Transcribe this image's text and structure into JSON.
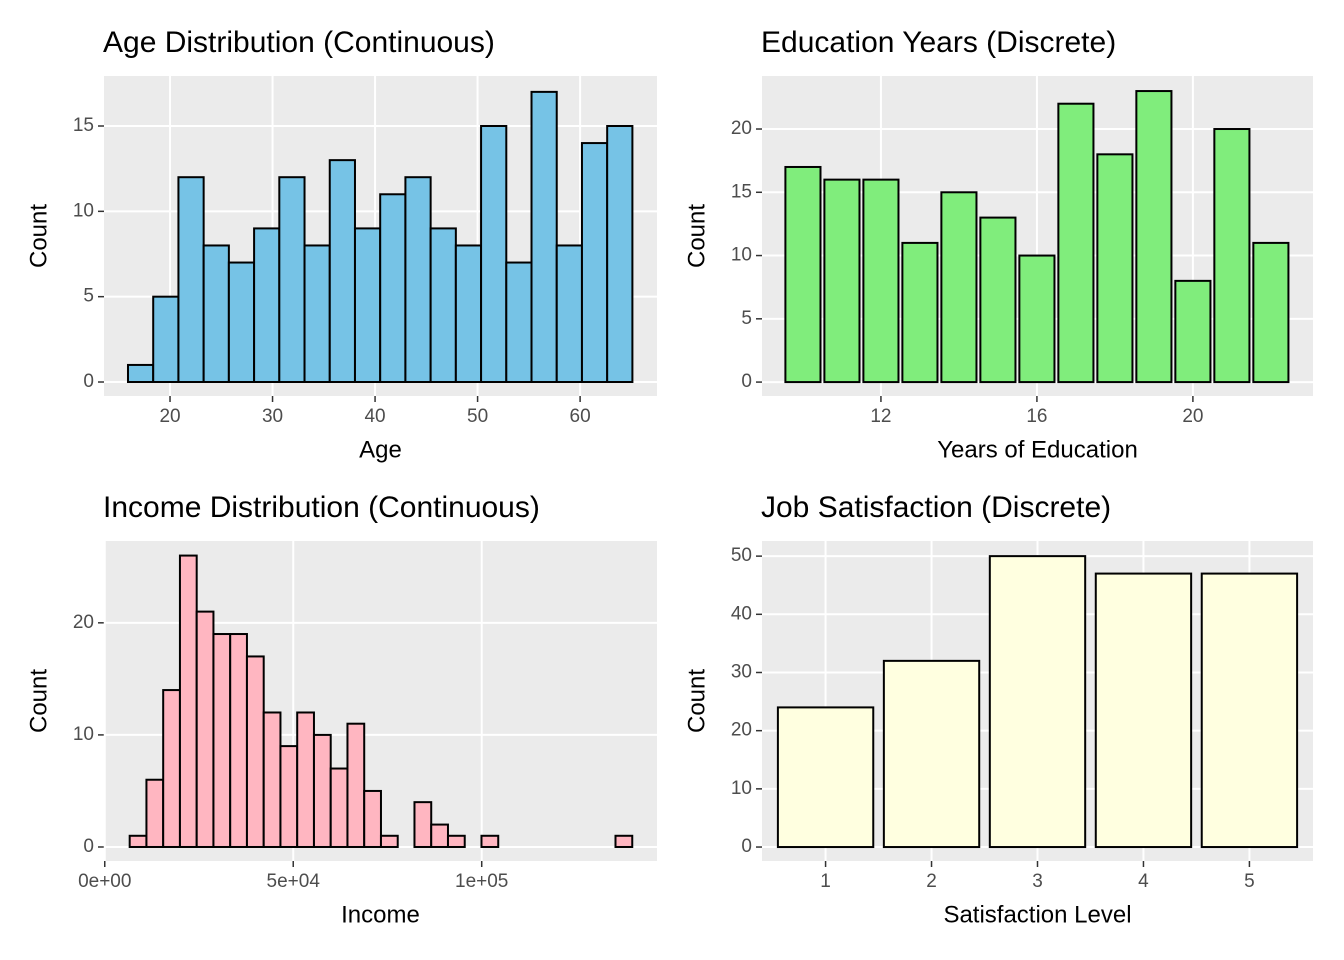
{
  "chart_data": [
    {
      "type": "histogram",
      "title": "Age Distribution (Continuous)",
      "x_label": "Age",
      "y_label": "Count",
      "bins": [
        15.9,
        18.36,
        20.82,
        23.28,
        25.74,
        28.2,
        30.66,
        33.12,
        35.58,
        38.04,
        40.5,
        42.96,
        45.42,
        47.88,
        50.34,
        52.8,
        55.26,
        57.72,
        60.18,
        62.64,
        65.1
      ],
      "counts": [
        1,
        5,
        12,
        8,
        7,
        9,
        12,
        8,
        13,
        9,
        11,
        12,
        9,
        8,
        15,
        7,
        17,
        8,
        14,
        15
      ],
      "color": "#76c3e6",
      "edge_color": "#000000",
      "xlim": [
        13.56,
        67.5
      ],
      "xticks": [
        20,
        30,
        40,
        50,
        60
      ],
      "ylim": [
        -0.82,
        17.93
      ],
      "yticks": [
        0,
        5,
        10,
        15
      ],
      "grid": true
    },
    {
      "type": "bar",
      "title": "Education Years (Discrete)",
      "x_label": "Years of Education",
      "y_label": "Count",
      "x": [
        10,
        11,
        12,
        13,
        14,
        15,
        16,
        17,
        18,
        19,
        20,
        21,
        22
      ],
      "values": [
        17,
        16,
        16,
        11,
        15,
        13,
        10,
        22,
        18,
        23,
        8,
        20,
        11
      ],
      "color": "#80ed7c",
      "edge_color": "#000000",
      "xlim": [
        8.95,
        23.08
      ],
      "xticks": [
        12,
        16,
        20
      ],
      "ylim": [
        -1.1,
        24.19
      ],
      "yticks": [
        0,
        5,
        10,
        15,
        20
      ],
      "grid": true
    },
    {
      "type": "histogram",
      "title": "Income Distribution (Continuous)",
      "x_label": "Income",
      "y_label": "Count",
      "bins": [
        6614,
        11058,
        15502,
        19946,
        24390,
        28834,
        33278,
        37722,
        42166,
        46610,
        51054,
        55498,
        59942,
        64386,
        68830,
        73274,
        77718,
        82162,
        86606,
        91050,
        95494,
        99938,
        104382,
        108826,
        113270,
        117714,
        122158,
        126602,
        131046,
        135490,
        139934
      ],
      "counts": [
        1,
        6,
        14,
        26,
        21,
        19,
        19,
        17,
        12,
        9,
        12,
        10,
        7,
        11,
        5,
        1,
        0,
        4,
        2,
        1,
        0,
        1,
        0,
        0,
        0,
        0,
        0,
        0,
        0,
        1
      ],
      "color": "#ffb6c1",
      "edge_color": "#000000",
      "xlim": [
        -200,
        146500
      ],
      "xticks": [
        {
          "value": 0,
          "label": "0e+00"
        },
        {
          "value": 50000,
          "label": "5e+04"
        },
        {
          "value": 100000,
          "label": "1e+05"
        }
      ],
      "ylim": [
        -1.25,
        27.3
      ],
      "yticks": [
        0,
        10,
        20
      ],
      "grid": true
    },
    {
      "type": "bar",
      "title": "Job Satisfaction (Discrete)",
      "x_label": "Satisfaction Level",
      "y_label": "Count",
      "x": [
        1,
        2,
        3,
        4,
        5
      ],
      "values": [
        24,
        32,
        50,
        47,
        47
      ],
      "color": "#ffffe0",
      "edge_color": "#000000",
      "xlim": [
        0.4,
        5.6
      ],
      "xticks": [
        1,
        2,
        3,
        4,
        5
      ],
      "ylim": [
        -2.4,
        52.6
      ],
      "yticks": [
        0,
        10,
        20,
        30,
        40,
        50
      ],
      "grid": true
    }
  ]
}
